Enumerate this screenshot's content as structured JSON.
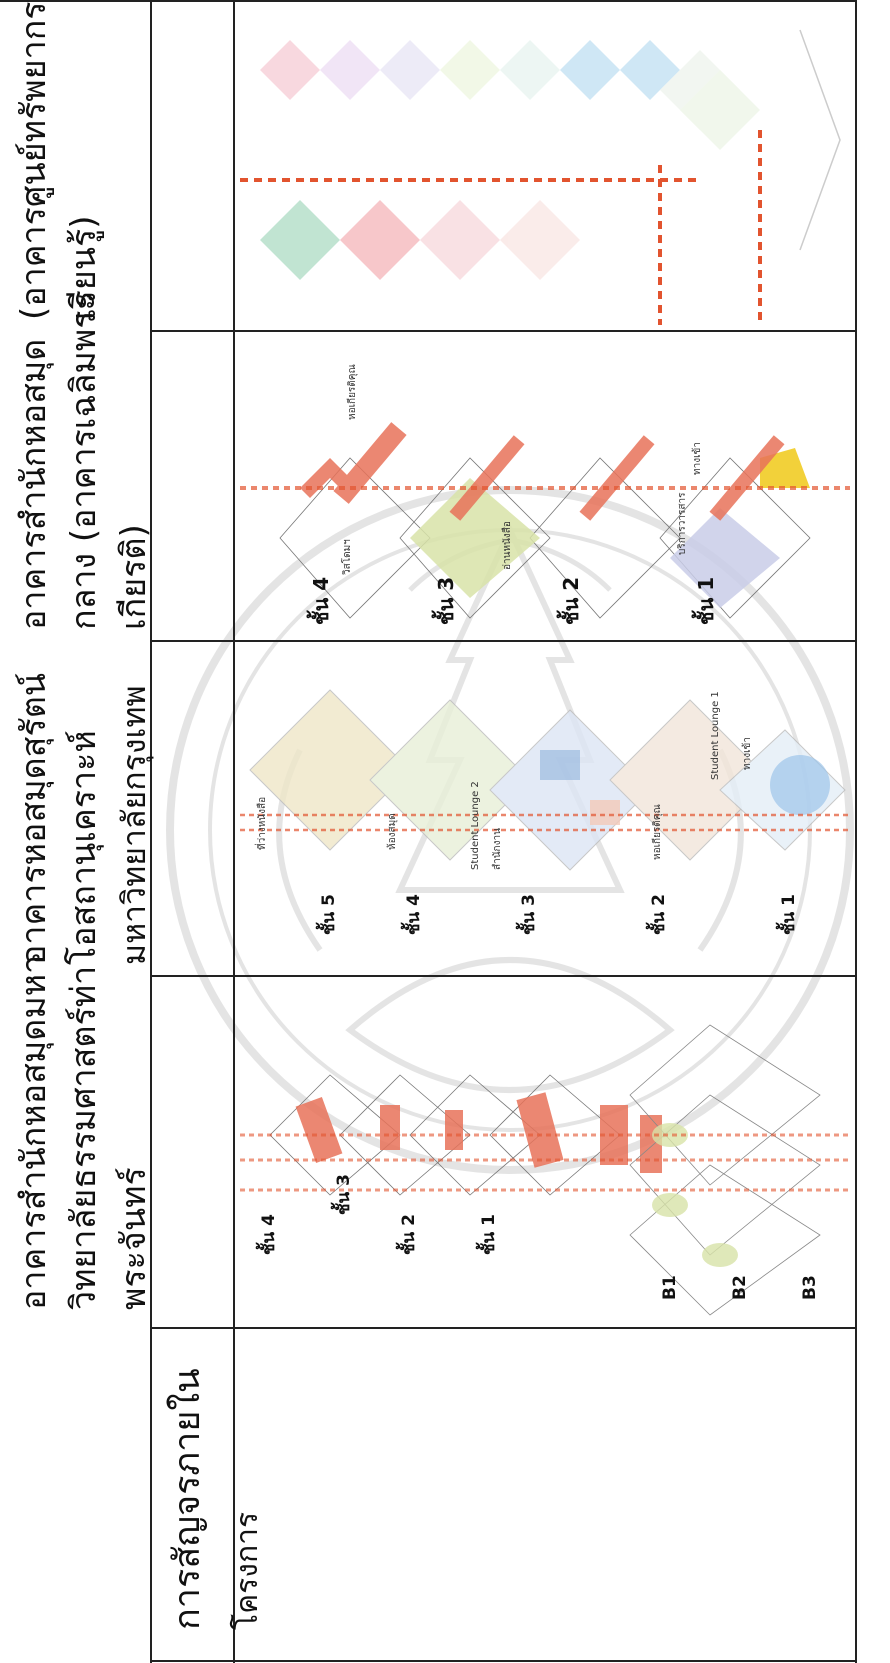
{
  "row_label": {
    "line1": "การสัญจรภายใน",
    "line2": "โครงการ"
  },
  "columns": [
    {
      "title_lines": [
        "อาคารสำนักหอสมุดมหา",
        "วิทยาลัยธรรมศาสตร์ท่า",
        "พระจันทร์"
      ],
      "floor_labels": [
        "ชั้น 4",
        "ชั้น 3",
        "ชั้น 2",
        "ชั้น 1",
        "B1",
        "B2",
        "B3"
      ]
    },
    {
      "title_lines": [
        "อาคารหอสมุดสุรัตน์",
        "โอสถานุเคราะห์",
        "มหาวิทยาลัยกรุงเทพ"
      ],
      "floor_labels": [
        "ชั้น 5",
        "ชั้น 4",
        "ชั้น 3",
        "ชั้น 2",
        "ชั้น 1"
      ],
      "zone_labels": [
        "ที่ว่างหนังสือ",
        "ห้องสมุด",
        "Student Lounge 2",
        "สำนักงาน",
        "หอเกียรติคุณ",
        "Student Lounge 1",
        "ทางเข้า"
      ]
    },
    {
      "title_lines": [
        "อาคารสำนักหอสมุด",
        "กลาง (อาคารเฉลิมพระ",
        "เกียรติ)"
      ],
      "floor_labels": [
        "ชั้น 4",
        "ชั้น 3",
        "ชั้น 2",
        "ชั้น 1"
      ],
      "zone_labels": [
        "หอเกียรติคุณ",
        "วิสโดมฯ",
        "อ่านหนังสือ",
        "บริการวารสาร",
        "ทางเข้า"
      ]
    },
    {
      "title_lines": [
        "(อาคารศูนย์ทรัพยากรการ",
        "เรียนรู้)"
      ]
    }
  ],
  "colors": {
    "circulation": "#e8735a",
    "route": "#e2542f",
    "reading": "#d8e3a8",
    "service": "#c9cde8",
    "entrance": "#f2d13a",
    "watermark": "#8a8a8a"
  }
}
